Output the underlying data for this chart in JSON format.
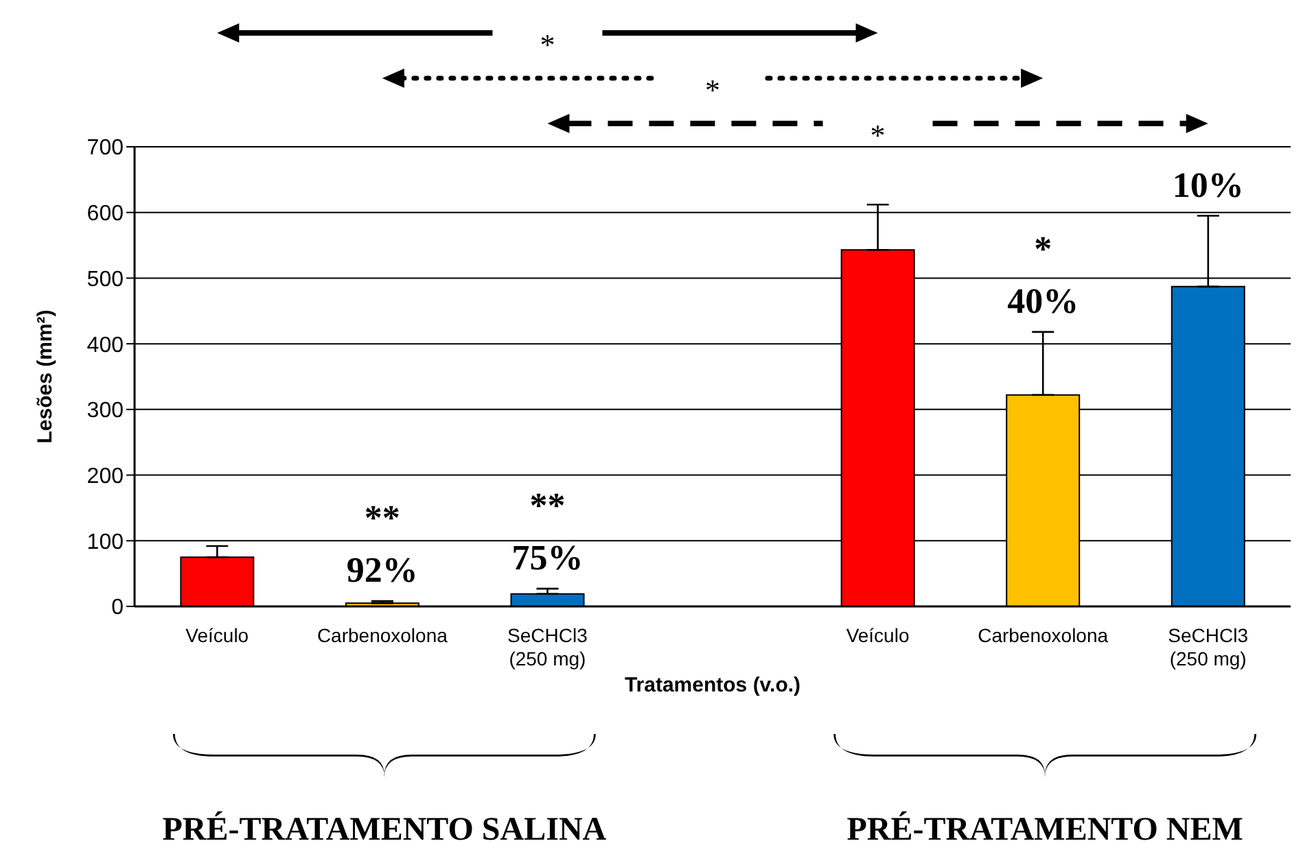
{
  "chart_data": {
    "type": "bar",
    "xlabel": "Tratamentos (v.o.)",
    "ylabel": "Lesões (mm²)",
    "categories": [
      "Veículo",
      "Carbenoxolona",
      "SeCHCl3\n(250 mg)",
      null,
      "Veículo",
      "Carbenoxolona",
      "SeCHCl3\n(250 mg)"
    ],
    "values": [
      75,
      5,
      19,
      null,
      543,
      322,
      487
    ],
    "colors": [
      "#ff0000",
      "#ffc000",
      "#0070c0",
      null,
      "#ff0000",
      "#ffc000",
      "#0070c0"
    ],
    "errors": [
      [
        75,
        92
      ],
      [
        5,
        8
      ],
      [
        19,
        27
      ],
      null,
      [
        543,
        612
      ],
      [
        322,
        418
      ],
      [
        487,
        595
      ]
    ],
    "annotations": [
      "*",
      "*",
      "*",
      "PRÉ-TRATAMENTO SALINA",
      "PRÉ-TRATAMENTO NEM",
      {
        "text": "**\n92%",
        "x": "Carbenoxolona",
        "y": 5
      },
      {
        "text": "**\n75%",
        "x": "SeCHCl3\n(250 mg)",
        "y": 19
      },
      {
        "text": "*\n40%",
        "y": 322
      },
      {
        "text": "10%",
        "y": 487
      }
    ],
    "ylim": [
      0,
      700
    ],
    "yticks": [
      0,
      100,
      200,
      300,
      400,
      500,
      600,
      700
    ],
    "grid": "y"
  }
}
